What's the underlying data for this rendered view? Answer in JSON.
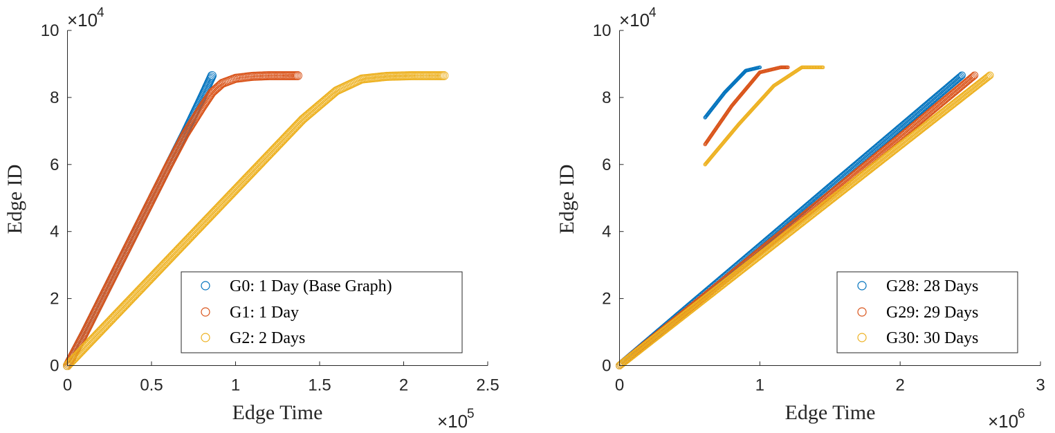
{
  "chart_data": [
    {
      "type": "scatter",
      "xlabel": "Edge Time",
      "ylabel": "Edge ID",
      "xlim": [
        0,
        250000
      ],
      "ylim": [
        0,
        100000
      ],
      "x_ticks": [
        0,
        50000,
        100000,
        150000,
        200000,
        250000
      ],
      "x_tick_labels": [
        "0",
        "0.5",
        "1",
        "1.5",
        "2",
        "2.5"
      ],
      "y_ticks": [
        0,
        20000,
        40000,
        60000,
        80000,
        100000
      ],
      "y_tick_labels": [
        "0",
        "2",
        "4",
        "6",
        "8",
        "10"
      ],
      "x_exponent": {
        "base": "×10",
        "power": "5"
      },
      "y_exponent": {
        "base": "×10",
        "power": "4"
      },
      "legend_position": "lower-right",
      "series": [
        {
          "name": "G0: 1 Day (Base Graph)",
          "color": "#0072bd",
          "points": [
            [
              0,
              0
            ],
            [
              10000,
              9500
            ],
            [
              20000,
              19500
            ],
            [
              30000,
              29500
            ],
            [
              40000,
              39500
            ],
            [
              50000,
              49500
            ],
            [
              60000,
              59500
            ],
            [
              70000,
              69500
            ],
            [
              80000,
              80000
            ],
            [
              86000,
              86500
            ]
          ]
        },
        {
          "name": "G1: 1 Day",
          "color": "#d95319",
          "points": [
            [
              0,
              0
            ],
            [
              10000,
              9500
            ],
            [
              20000,
              19500
            ],
            [
              30000,
              29500
            ],
            [
              40000,
              39500
            ],
            [
              50000,
              49500
            ],
            [
              60000,
              59500
            ],
            [
              70000,
              69000
            ],
            [
              80000,
              77000
            ],
            [
              86000,
              81500
            ],
            [
              92000,
              84200
            ],
            [
              100000,
              85700
            ],
            [
              110000,
              86300
            ],
            [
              120000,
              86500
            ],
            [
              130000,
              86500
            ],
            [
              137000,
              86500
            ]
          ]
        },
        {
          "name": "G2: 2 Days",
          "color": "#edb120",
          "points": [
            [
              0,
              0
            ],
            [
              20000,
              10500
            ],
            [
              40000,
              21000
            ],
            [
              60000,
              31500
            ],
            [
              80000,
              42000
            ],
            [
              100000,
              52500
            ],
            [
              120000,
              63000
            ],
            [
              140000,
              73500
            ],
            [
              160000,
              82000
            ],
            [
              175000,
              85500
            ],
            [
              190000,
              86300
            ],
            [
              205000,
              86500
            ],
            [
              215000,
              86500
            ],
            [
              224000,
              86500
            ]
          ]
        }
      ]
    },
    {
      "type": "scatter",
      "xlabel": "Edge Time",
      "ylabel": "Edge ID",
      "xlim": [
        0,
        3000000
      ],
      "ylim": [
        0,
        100000
      ],
      "x_ticks": [
        0,
        1000000,
        2000000,
        3000000
      ],
      "x_tick_labels": [
        "0",
        "1",
        "2",
        "3"
      ],
      "y_ticks": [
        0,
        20000,
        40000,
        60000,
        80000,
        100000
      ],
      "y_tick_labels": [
        "0",
        "2",
        "4",
        "6",
        "8",
        "10"
      ],
      "x_exponent": {
        "base": "×10",
        "power": "6"
      },
      "y_exponent": {
        "base": "×10",
        "power": "4"
      },
      "legend_position": "lower-right",
      "series": [
        {
          "name": "G28: 28 Days",
          "color": "#0072bd",
          "points": [
            [
              0,
              0
            ],
            [
              500000,
              17800
            ],
            [
              1000000,
              35500
            ],
            [
              1500000,
              53300
            ],
            [
              2000000,
              71000
            ],
            [
              2440000,
              86600
            ]
          ],
          "inset_points": [
            [
              610000,
              74000
            ],
            [
              750000,
              81500
            ],
            [
              900000,
              88000
            ],
            [
              1000000,
              89000
            ]
          ]
        },
        {
          "name": "G29: 29 Days",
          "color": "#d95319",
          "points": [
            [
              0,
              0
            ],
            [
              500000,
              17000
            ],
            [
              1000000,
              34100
            ],
            [
              1500000,
              51100
            ],
            [
              2000000,
              68200
            ],
            [
              2530000,
              86600
            ]
          ],
          "inset_points": [
            [
              610000,
              66000
            ],
            [
              800000,
              77500
            ],
            [
              1000000,
              87500
            ],
            [
              1150000,
              89000
            ],
            [
              1200000,
              89000
            ]
          ]
        },
        {
          "name": "G30: 30 Days",
          "color": "#edb120",
          "points": [
            [
              0,
              0
            ],
            [
              500000,
              16400
            ],
            [
              1000000,
              32800
            ],
            [
              1500000,
              49200
            ],
            [
              2000000,
              65600
            ],
            [
              2640000,
              86600
            ]
          ],
          "inset_points": [
            [
              610000,
              60000
            ],
            [
              850000,
              72000
            ],
            [
              1100000,
              83500
            ],
            [
              1300000,
              89000
            ],
            [
              1450000,
              89000
            ]
          ]
        }
      ]
    }
  ]
}
